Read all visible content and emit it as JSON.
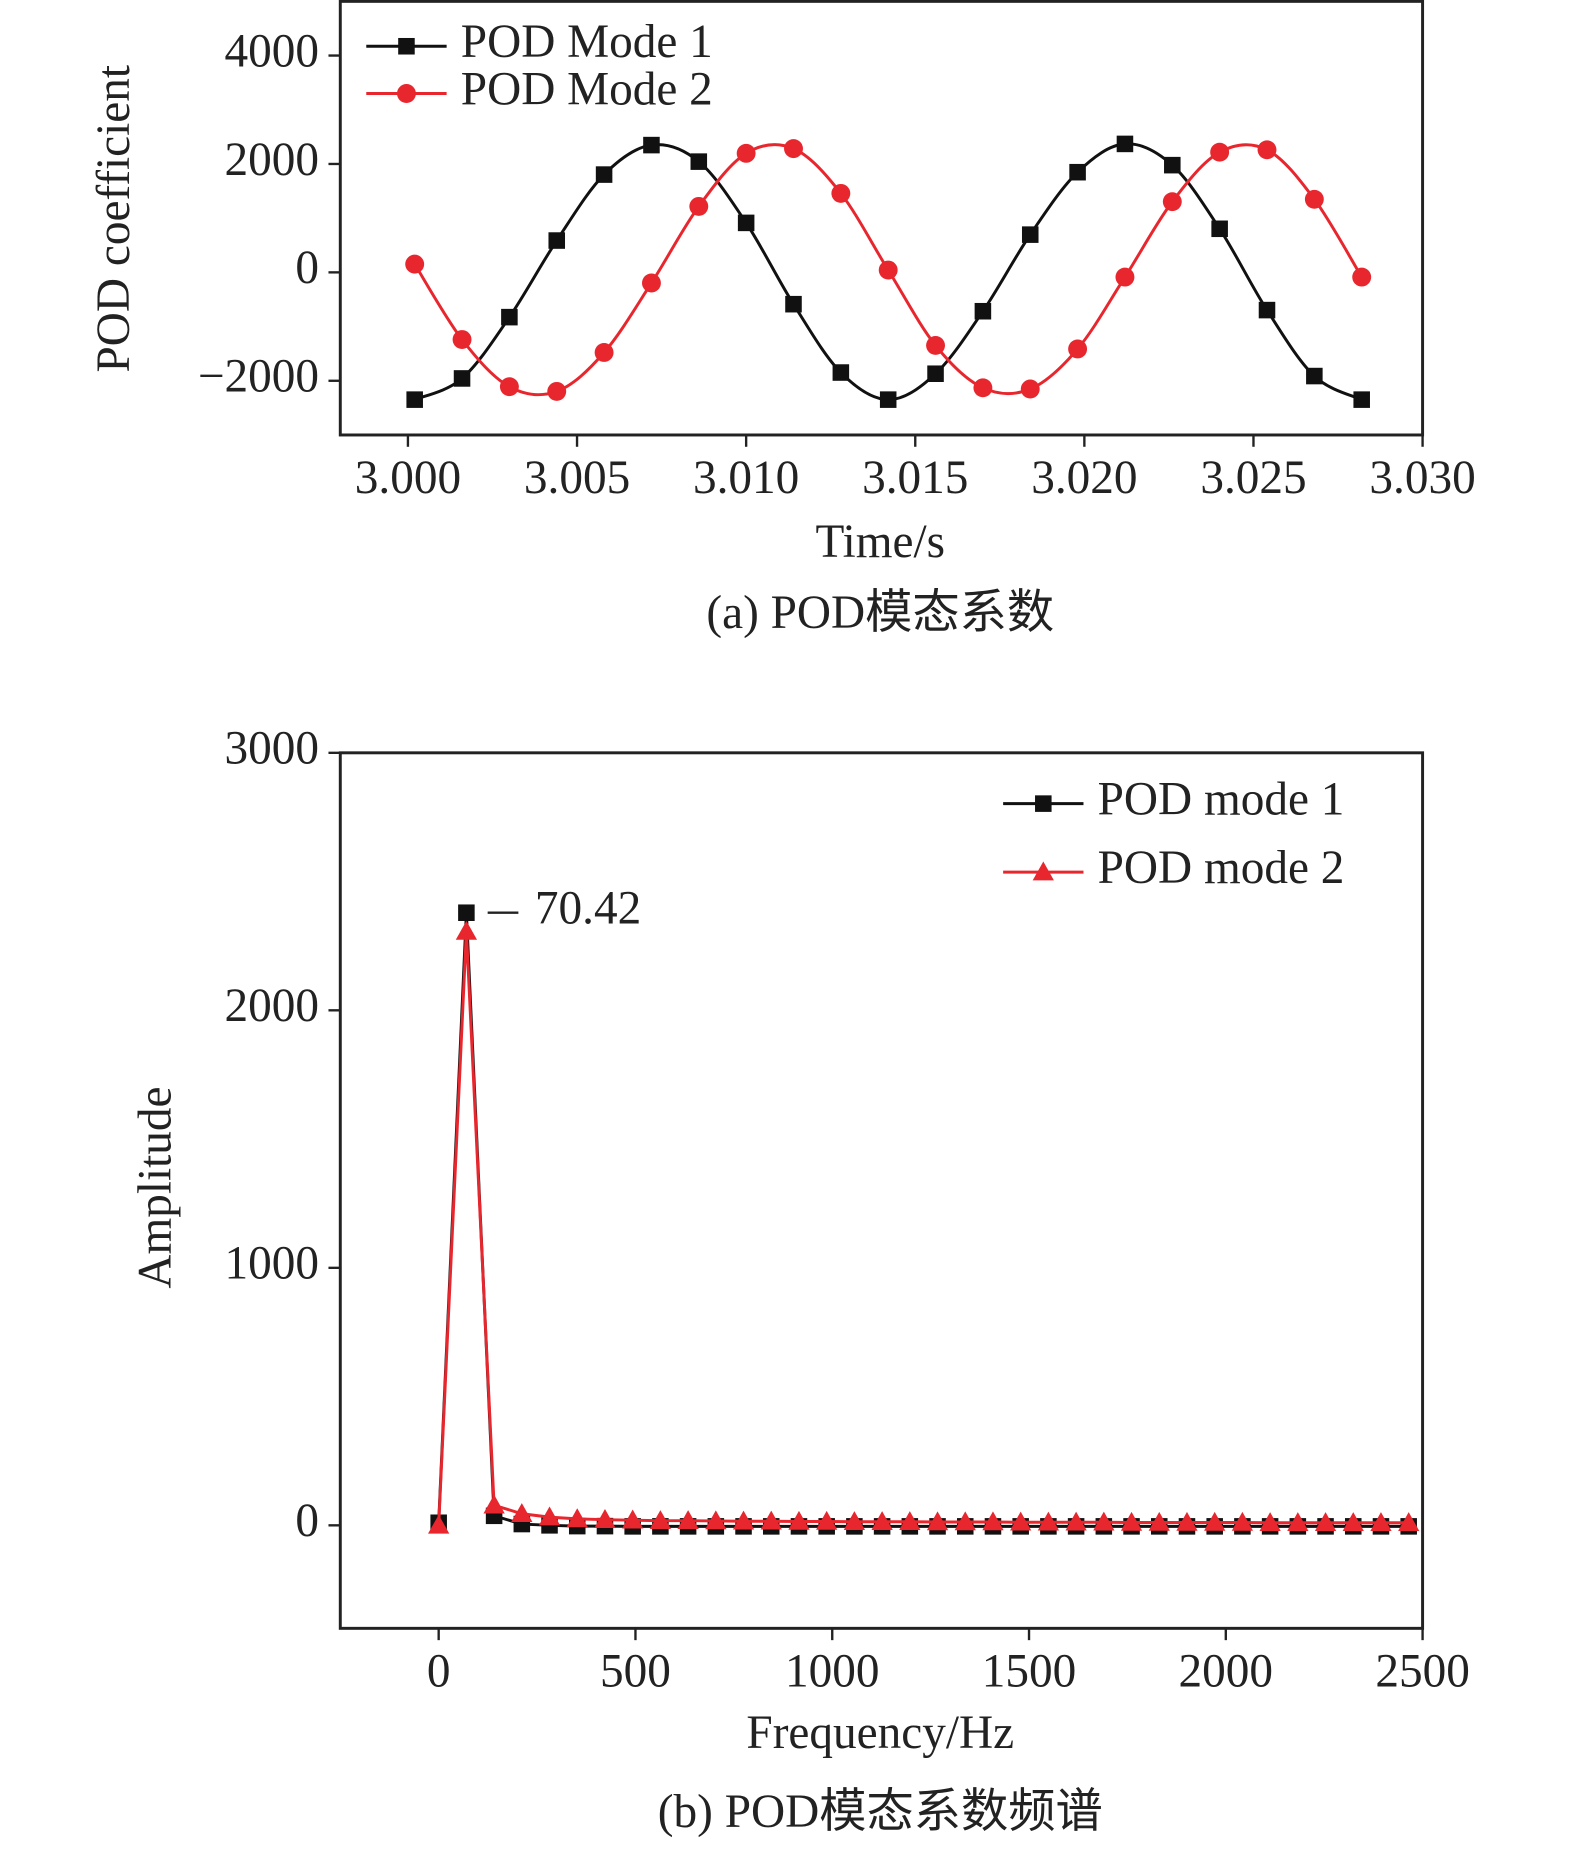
{
  "chart_data": [
    {
      "type": "line",
      "smooth": true,
      "legend": "upper left",
      "x_label": "Time/s",
      "y_label": "POD coefficient",
      "caption": "(a) POD模态系数",
      "x": [
        3.0002,
        3.0016,
        3.003,
        3.0044,
        3.0058,
        3.0072,
        3.0086,
        3.01,
        3.0114,
        3.0128,
        3.0142,
        3.0156,
        3.017,
        3.0184,
        3.0198,
        3.0212,
        3.0226,
        3.024,
        3.0254,
        3.0268,
        3.0282
      ],
      "series": [
        {
          "name": "POD Mode 1",
          "color": "#111111",
          "marker": "square",
          "values": [
            -2348,
            -1957,
            -826,
            587,
            1804,
            2348,
            2043,
            913,
            -587,
            -1848,
            -2348,
            -1870,
            -717,
            696,
            1848,
            2370,
            1978,
            804,
            -696,
            -1913,
            -2348
          ]
        },
        {
          "name": "POD Mode 2",
          "color": "#e8262d",
          "marker": "circle",
          "values": [
            152,
            -1239,
            -2109,
            -2196,
            -1478,
            -196,
            1217,
            2196,
            2283,
            1457,
            43,
            -1348,
            -2130,
            -2152,
            -1413,
            -87,
            1304,
            2217,
            2261,
            1348,
            -87
          ]
        }
      ],
      "xlim": [
        2.998,
        3.03
      ],
      "xticks": [
        {
          "value": 3.0,
          "label": "3.000"
        },
        3.005,
        {
          "value": 3.01,
          "label": "3.010"
        },
        3.015,
        {
          "value": 3.02,
          "label": "3.020"
        },
        3.025,
        {
          "value": 3.03,
          "label": "3.030"
        }
      ],
      "ylim": [
        -3000,
        5000
      ],
      "yticks": [
        {
          "value": -2000,
          "label": "−2000"
        },
        0,
        2000,
        4000
      ]
    },
    {
      "type": "line",
      "smooth": false,
      "legend": "upper right",
      "x_label": "Frequency/Hz",
      "y_label": "Amplitude",
      "caption": "(b) POD模态系数频谱",
      "annotation": "70.42",
      "x": [
        0,
        70.42,
        140.84,
        211.26,
        281.68,
        352.1,
        422.52,
        492.94,
        563.36,
        633.78,
        704.2,
        774.62,
        845.04,
        915.46,
        985.88,
        1056.3,
        1126.72,
        1197.14,
        1267.56,
        1337.98,
        1408.4,
        1478.82,
        1549.24,
        1619.66,
        1690.08,
        1760.5,
        1830.92,
        1901.34,
        1971.76,
        2042.18,
        2112.6,
        2183.02,
        2253.44,
        2323.86,
        2394.28,
        2464.7
      ],
      "series": [
        {
          "name": "POD mode 1",
          "color": "#111111",
          "marker": "square",
          "values": [
            10,
            2379,
            37,
            5,
            0,
            -3,
            -3,
            -4,
            -4,
            -4,
            -4,
            -4,
            -4,
            -4,
            -4,
            -4,
            -4,
            -4,
            -4,
            -4,
            -4,
            -4,
            -4,
            -4,
            -4,
            -4,
            -4,
            -4,
            -4,
            -4,
            -4,
            -4,
            -4,
            -4,
            -4,
            -4
          ]
        },
        {
          "name": "POD mode 2",
          "color": "#e8262d",
          "marker": "triangle",
          "values": [
            0,
            2306,
            78,
            45,
            32,
            25,
            22,
            20,
            18,
            18,
            17,
            16,
            16,
            15,
            15,
            14,
            14,
            14,
            13,
            13,
            13,
            12,
            12,
            12,
            12,
            11,
            11,
            11,
            11,
            11,
            10,
            10,
            10,
            10,
            10,
            10
          ]
        }
      ],
      "xlim": [
        -250,
        2500
      ],
      "xticks": [
        0,
        500,
        1000,
        1500,
        2000,
        2500
      ],
      "ylim": [
        -400,
        3000
      ],
      "yticks": [
        0,
        1000,
        2000,
        3000
      ]
    }
  ]
}
